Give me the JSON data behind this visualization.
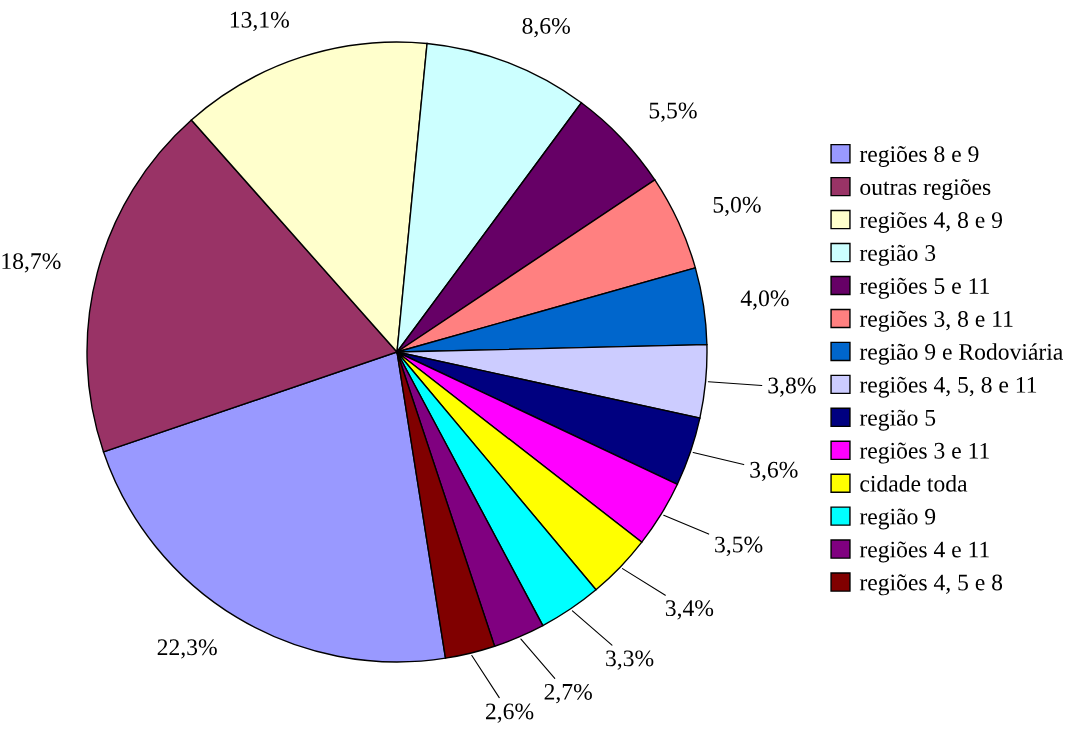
{
  "chart_data": {
    "type": "pie",
    "categories": [
      "regiões 8 e 9",
      "outras regiões",
      "regiões 4, 8 e 9",
      "região 3",
      "regiões 5 e 11",
      "regiões 3, 8 e 11",
      "região 9 e Rodoviária",
      "regiões 4, 5, 8 e 11",
      "região 5",
      "regiões 3 e 11",
      "cidade toda",
      "região 9",
      "regiões 4 e 11",
      "regiões 4, 5 e 8"
    ],
    "values": [
      22.3,
      18.7,
      13.1,
      8.6,
      5.5,
      5.0,
      4.0,
      3.8,
      3.6,
      3.5,
      3.4,
      3.3,
      2.7,
      2.6
    ],
    "value_labels": [
      "22,3%",
      "18,7%",
      "13,1%",
      "8,6%",
      "5,5%",
      "5,0%",
      "4,0%",
      "3,8%",
      "3,6%",
      "3,5%",
      "3,4%",
      "3,3%",
      "2,7%",
      "2,6%"
    ],
    "colors": [
      "#9999ff",
      "#993366",
      "#ffffcc",
      "#ccffff",
      "#660066",
      "#ff8080",
      "#0066cc",
      "#ccccff",
      "#000080",
      "#ff00ff",
      "#ffff00",
      "#00ffff",
      "#800080",
      "#800000"
    ],
    "legend": "right"
  }
}
